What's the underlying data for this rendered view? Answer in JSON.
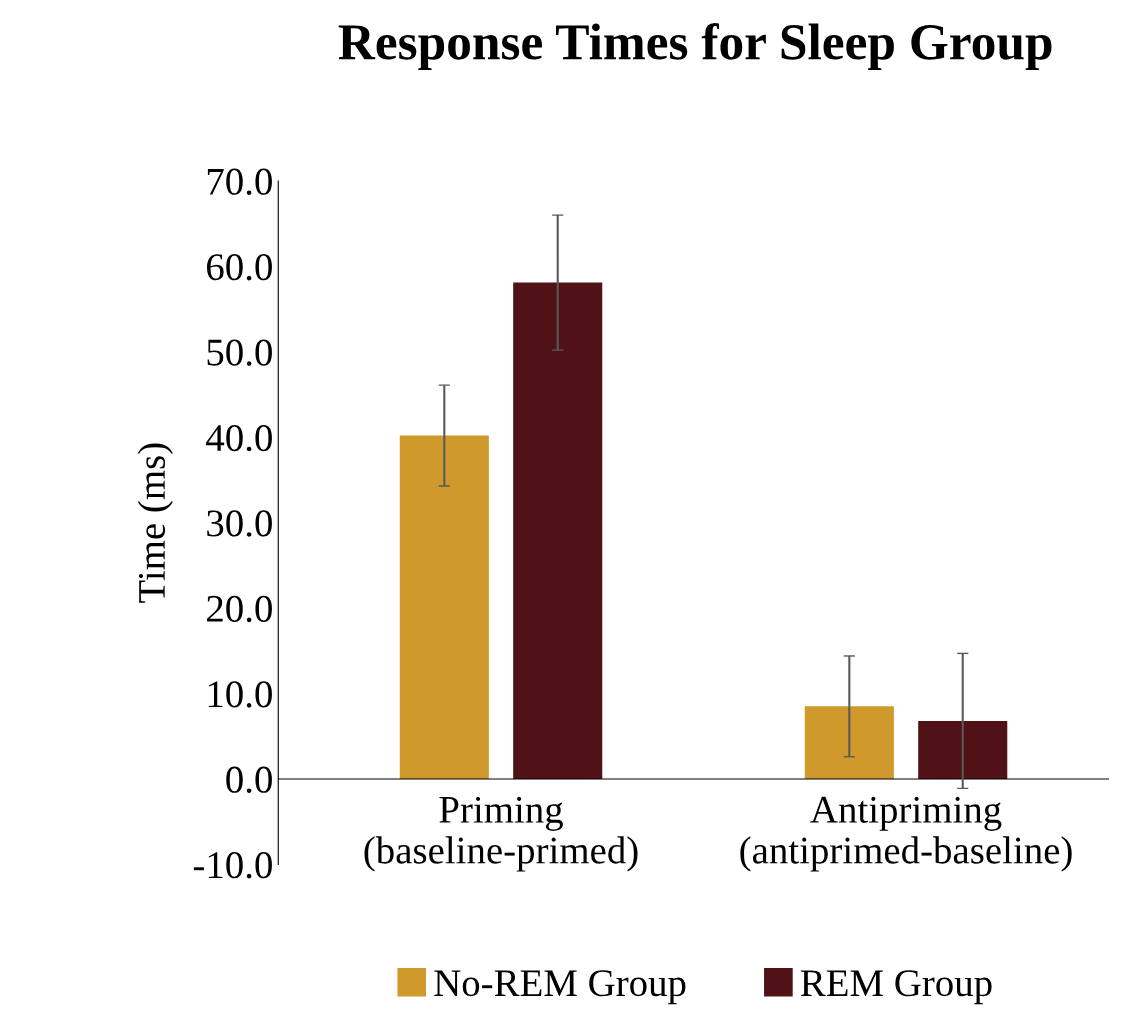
{
  "chart_data": {
    "type": "bar",
    "title": "Response Times for Sleep Group",
    "ylabel": "Time (ms)",
    "categories": [
      "Priming\n(baseline-primed)",
      "Antipriming\n(antiprimed-baseline)"
    ],
    "series": [
      {
        "name": "No-REM Group",
        "color": "#d0992c",
        "values": [
          40.2,
          8.5
        ],
        "errors": [
          5.9,
          5.9
        ]
      },
      {
        "name": "REM Group",
        "color": "#501216",
        "values": [
          58.1,
          6.8
        ],
        "errors": [
          7.9,
          7.9
        ]
      }
    ],
    "ylim": [
      -10,
      70
    ],
    "yticks": [
      {
        "value": -10,
        "label": "-10.0"
      },
      {
        "value": 0,
        "label": "0.0"
      },
      {
        "value": 10,
        "label": "10.0"
      },
      {
        "value": 20,
        "label": "20.0"
      },
      {
        "value": 30,
        "label": "30.0"
      },
      {
        "value": 40,
        "label": "40.0"
      },
      {
        "value": 50,
        "label": "50.0"
      },
      {
        "value": 60,
        "label": "60.0"
      },
      {
        "value": 70,
        "label": "70.0"
      }
    ],
    "grid": false,
    "legend": "bottom"
  }
}
